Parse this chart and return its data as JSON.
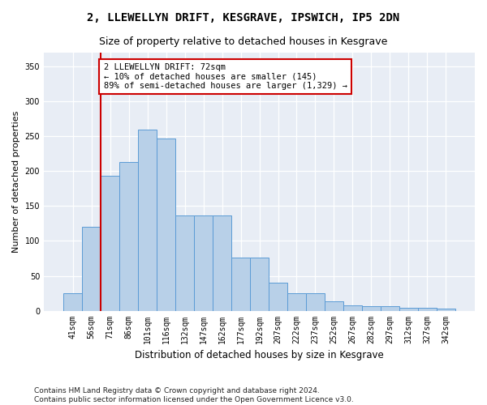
{
  "title": "2, LLEWELLYN DRIFT, KESGRAVE, IPSWICH, IP5 2DN",
  "subtitle": "Size of property relative to detached houses in Kesgrave",
  "xlabel": "Distribution of detached houses by size in Kesgrave",
  "ylabel": "Number of detached properties",
  "categories": [
    "41sqm",
    "56sqm",
    "71sqm",
    "86sqm",
    "101sqm",
    "116sqm",
    "132sqm",
    "147sqm",
    "162sqm",
    "177sqm",
    "192sqm",
    "207sqm",
    "222sqm",
    "237sqm",
    "252sqm",
    "267sqm",
    "282sqm",
    "297sqm",
    "312sqm",
    "327sqm",
    "342sqm"
  ],
  "bar_values": [
    25,
    120,
    193,
    213,
    260,
    247,
    136,
    136,
    136,
    76,
    76,
    40,
    25,
    25,
    14,
    8,
    7,
    7,
    4,
    4,
    3
  ],
  "bar_color": "#b8d0e8",
  "bar_edge_color": "#5b9bd5",
  "vline_color": "#cc0000",
  "vline_x_index": 2,
  "annotation_text": "2 LLEWELLYN DRIFT: 72sqm\n← 10% of detached houses are smaller (145)\n89% of semi-detached houses are larger (1,329) →",
  "annotation_box_color": "#ffffff",
  "annotation_box_edge": "#cc0000",
  "ylim": [
    0,
    370
  ],
  "yticks": [
    0,
    50,
    100,
    150,
    200,
    250,
    300,
    350
  ],
  "background_color": "#e8edf5",
  "footer_text": "Contains HM Land Registry data © Crown copyright and database right 2024.\nContains public sector information licensed under the Open Government Licence v3.0.",
  "title_fontsize": 10,
  "subtitle_fontsize": 9,
  "xlabel_fontsize": 8.5,
  "ylabel_fontsize": 8,
  "tick_fontsize": 7,
  "annotation_fontsize": 7.5,
  "footer_fontsize": 6.5
}
